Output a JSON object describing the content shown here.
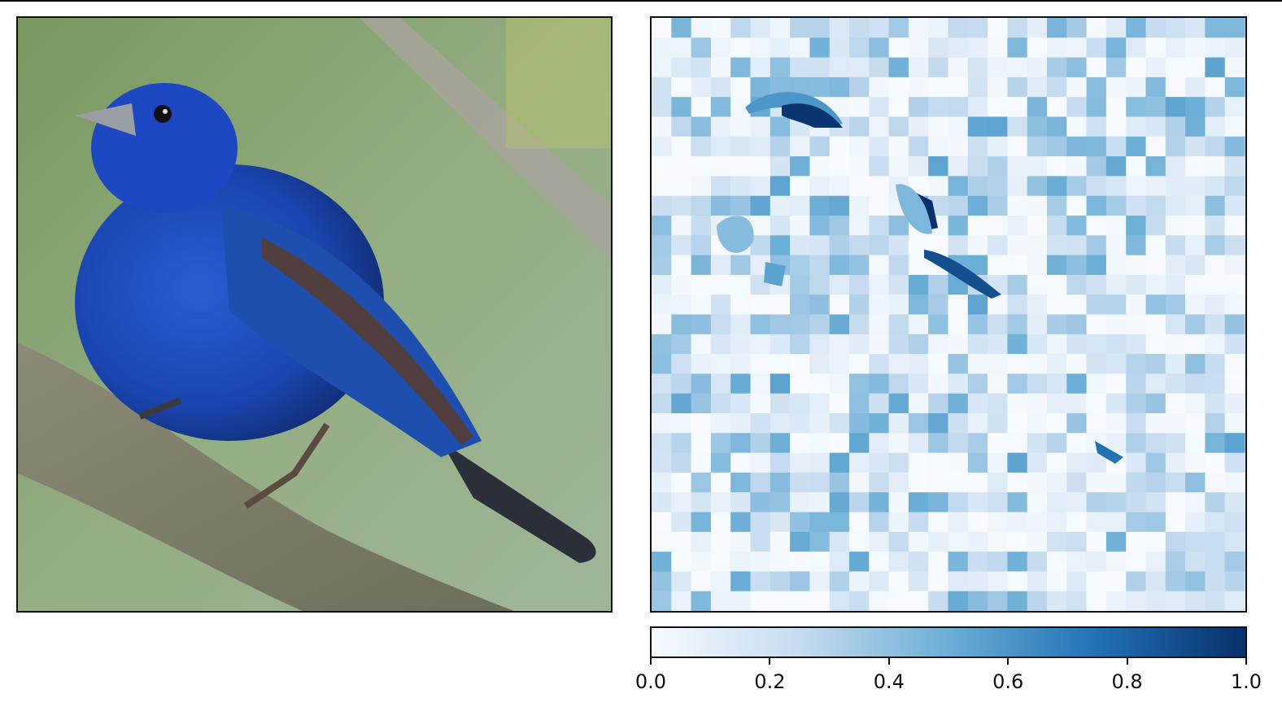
{
  "figure": {
    "left_panel": {
      "content": "photo of indigo bunting perched on branch",
      "icon": "bird-photo"
    },
    "right_panel": {
      "content": "superpixel attribution heatmap",
      "colormap": "Blues"
    }
  },
  "colors": {
    "cmap_low": "#f7fbff",
    "cmap_mid": "#6baed6",
    "cmap_high": "#08306b",
    "frame": "#111111"
  },
  "chart_data": {
    "type": "heatmap",
    "title": "",
    "colormap": "Blues",
    "colorbar": {
      "range": [
        0.0,
        1.0
      ],
      "ticks": [
        0.0,
        0.2,
        0.4,
        0.6,
        0.8,
        1.0
      ],
      "tick_labels": [
        "0.0",
        "0.2",
        "0.4",
        "0.6",
        "0.8",
        "1.0"
      ],
      "orientation": "horizontal"
    },
    "highlights": [
      {
        "region": "head / crown",
        "value": 0.95
      },
      {
        "region": "upper wing",
        "value": 1.0
      },
      {
        "region": "wing edge",
        "value": 0.85
      },
      {
        "region": "tail base",
        "value": 0.75
      }
    ]
  }
}
